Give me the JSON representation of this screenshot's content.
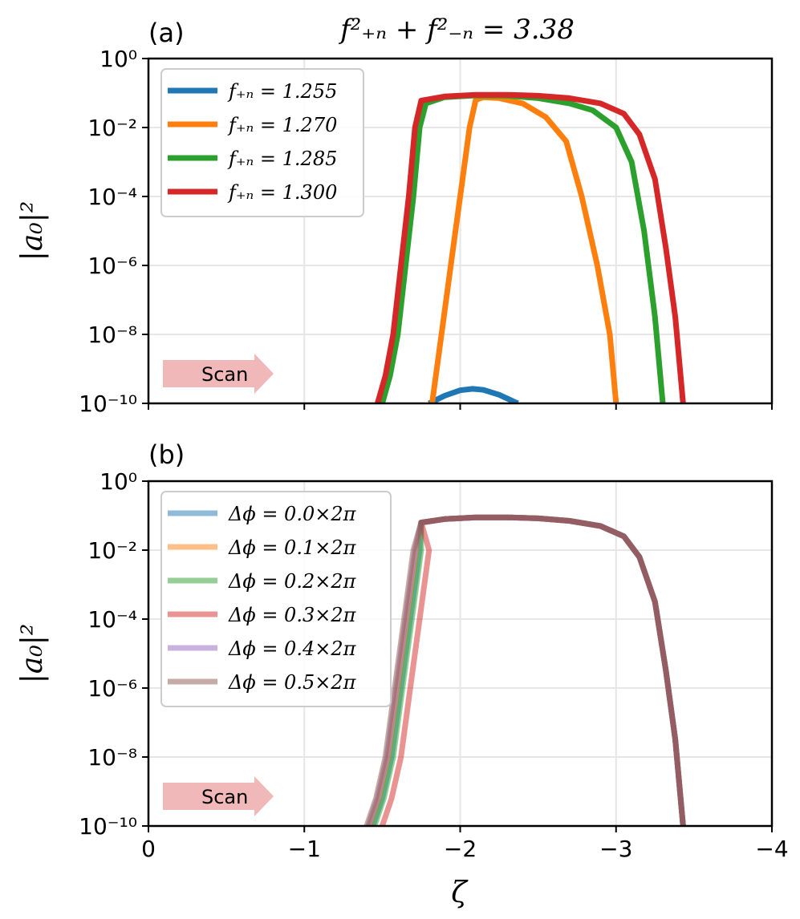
{
  "title": "f²₊ₙ + f²₋ₙ = 3.38",
  "xlabel": "ζ",
  "scan_label": "Scan",
  "colors": {
    "scan_arrow": "#f0b8b8",
    "grid": "#e6e6e6"
  },
  "chart_data": [
    {
      "panel_label": "(a)",
      "type": "line",
      "ylabel": "|a₀|²",
      "yscale": "log",
      "xlim": [
        0,
        -4
      ],
      "ylim_exponent": [
        -10,
        0
      ],
      "xticks": [
        "0",
        "−1",
        "−2",
        "−3",
        "−4"
      ],
      "yticks": [
        "10⁰",
        "10⁻²",
        "10⁻⁴",
        "10⁻⁶",
        "10⁻⁸",
        "10⁻¹⁰"
      ],
      "show_xticklabels": false,
      "grid": true,
      "legend_position": "top-left",
      "series": [
        {
          "name": "f₊ₙ = 1.255",
          "color": "#1f77b4",
          "opacity": 1,
          "log10_points": [
            [
              -1.8,
              -10.0
            ],
            [
              -1.9,
              -9.78
            ],
            [
              -2.0,
              -9.62
            ],
            [
              -2.08,
              -9.58
            ],
            [
              -2.15,
              -9.61
            ],
            [
              -2.25,
              -9.75
            ],
            [
              -2.35,
              -9.96
            ],
            [
              -2.37,
              -10.0
            ]
          ]
        },
        {
          "name": "f₊ₙ = 1.270",
          "color": "#ff7f0e",
          "opacity": 1,
          "log10_points": [
            [
              -1.82,
              -10.0
            ],
            [
              -1.88,
              -8.0
            ],
            [
              -1.94,
              -6.0
            ],
            [
              -2.0,
              -4.0
            ],
            [
              -2.06,
              -2.0
            ],
            [
              -2.1,
              -1.2
            ],
            [
              -2.15,
              -1.12
            ],
            [
              -2.25,
              -1.15
            ],
            [
              -2.4,
              -1.3
            ],
            [
              -2.55,
              -1.7
            ],
            [
              -2.68,
              -2.4
            ],
            [
              -2.78,
              -4.0
            ],
            [
              -2.88,
              -6.0
            ],
            [
              -2.96,
              -8.0
            ],
            [
              -3.0,
              -10.0
            ]
          ]
        },
        {
          "name": "f₊ₙ = 1.285",
          "color": "#2ca02c",
          "opacity": 1,
          "log10_points": [
            [
              -1.5,
              -10.0
            ],
            [
              -1.55,
              -9.2
            ],
            [
              -1.6,
              -8.0
            ],
            [
              -1.65,
              -6.0
            ],
            [
              -1.7,
              -4.0
            ],
            [
              -1.74,
              -2.0
            ],
            [
              -1.78,
              -1.3
            ],
            [
              -1.9,
              -1.12
            ],
            [
              -2.1,
              -1.07
            ],
            [
              -2.3,
              -1.08
            ],
            [
              -2.5,
              -1.15
            ],
            [
              -2.7,
              -1.3
            ],
            [
              -2.85,
              -1.5
            ],
            [
              -3.0,
              -2.0
            ],
            [
              -3.1,
              -3.0
            ],
            [
              -3.18,
              -5.0
            ],
            [
              -3.25,
              -7.5
            ],
            [
              -3.3,
              -10.0
            ]
          ]
        },
        {
          "name": "f₊ₙ = 1.300",
          "color": "#d62728",
          "opacity": 1,
          "log10_points": [
            [
              -1.47,
              -10.0
            ],
            [
              -1.52,
              -9.2
            ],
            [
              -1.57,
              -8.0
            ],
            [
              -1.62,
              -6.0
            ],
            [
              -1.67,
              -4.0
            ],
            [
              -1.71,
              -2.0
            ],
            [
              -1.75,
              -1.22
            ],
            [
              -1.9,
              -1.1
            ],
            [
              -2.1,
              -1.05
            ],
            [
              -2.3,
              -1.05
            ],
            [
              -2.5,
              -1.08
            ],
            [
              -2.7,
              -1.15
            ],
            [
              -2.9,
              -1.3
            ],
            [
              -3.05,
              -1.6
            ],
            [
              -3.15,
              -2.2
            ],
            [
              -3.25,
              -3.5
            ],
            [
              -3.32,
              -5.5
            ],
            [
              -3.38,
              -7.5
            ],
            [
              -3.43,
              -10.0
            ]
          ]
        }
      ]
    },
    {
      "panel_label": "(b)",
      "type": "line",
      "ylabel": "|a₀|²",
      "yscale": "log",
      "xlim": [
        0,
        -4
      ],
      "ylim_exponent": [
        -10,
        0
      ],
      "xticks": [
        "0",
        "−1",
        "−2",
        "−3",
        "−4"
      ],
      "yticks": [
        "10⁰",
        "10⁻²",
        "10⁻⁴",
        "10⁻⁶",
        "10⁻⁸",
        "10⁻¹⁰"
      ],
      "show_xticklabels": true,
      "grid": true,
      "legend_position": "top-left",
      "series": [
        {
          "name": "Δϕ = 0.0×2π",
          "color": "#1f77b4",
          "opacity": 0.5,
          "shift": 0.04
        },
        {
          "name": "Δϕ = 0.1×2π",
          "color": "#ff7f0e",
          "opacity": 0.5,
          "shift": 0.02
        },
        {
          "name": "Δϕ = 0.2×2π",
          "color": "#2ca02c",
          "opacity": 0.5,
          "shift": 0.05
        },
        {
          "name": "Δϕ = 0.3×2π",
          "color": "#d62728",
          "opacity": 0.5,
          "shift": 0.1
        },
        {
          "name": "Δϕ = 0.4×2π",
          "color": "#9467bd",
          "opacity": 0.5,
          "shift": 0.01
        },
        {
          "name": "Δϕ = 0.5×2π",
          "color": "#8c564b",
          "opacity": 0.5,
          "shift": 0.0
        }
      ],
      "base_log10_points": [
        [
          -1.4,
          -10.0
        ],
        [
          -1.46,
          -9.2
        ],
        [
          -1.52,
          -8.0
        ],
        [
          -1.58,
          -6.0
        ],
        [
          -1.64,
          -4.0
        ],
        [
          -1.7,
          -2.0
        ],
        [
          -1.75,
          -1.2
        ],
        [
          -1.9,
          -1.1
        ],
        [
          -2.1,
          -1.05
        ],
        [
          -2.3,
          -1.05
        ],
        [
          -2.5,
          -1.08
        ],
        [
          -2.7,
          -1.15
        ],
        [
          -2.9,
          -1.3
        ],
        [
          -3.05,
          -1.6
        ],
        [
          -3.15,
          -2.2
        ],
        [
          -3.25,
          -3.5
        ],
        [
          -3.32,
          -5.5
        ],
        [
          -3.38,
          -7.5
        ],
        [
          -3.43,
          -10.0
        ]
      ]
    }
  ]
}
